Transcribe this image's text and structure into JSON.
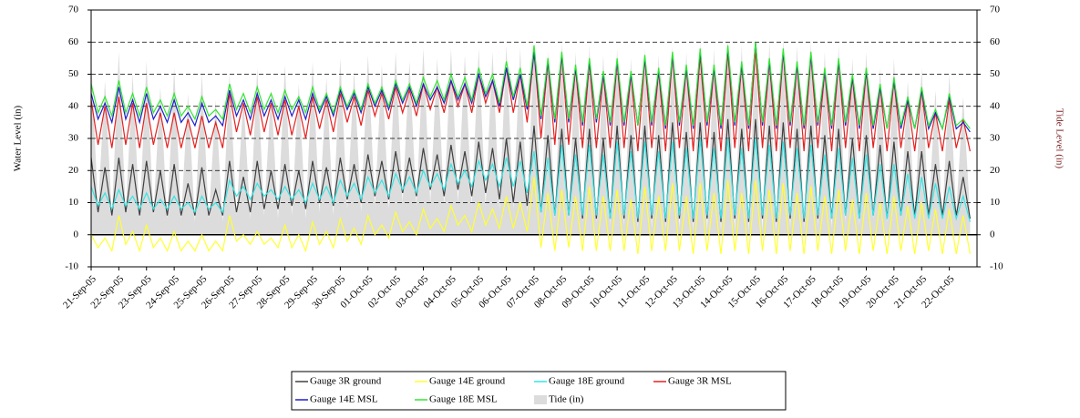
{
  "chart_data": {
    "type": "line",
    "y_label": "Water Level (in)",
    "y2_label": "Tide Level (in)",
    "ylim": [
      -10,
      70
    ],
    "yticks": [
      -10,
      0,
      10,
      20,
      30,
      40,
      50,
      60,
      70
    ],
    "y2lim": [
      -10,
      70
    ],
    "y2ticks": [
      -10,
      0,
      10,
      20,
      30,
      40,
      50,
      60,
      70
    ],
    "grid": true,
    "legend": "bottom",
    "categories": [
      "21-Sep-05",
      null,
      null,
      null,
      "22-Sep-05",
      null,
      null,
      null,
      "23-Sep-05",
      null,
      null,
      null,
      "24-Sep-05",
      null,
      null,
      null,
      "25-Sep-05",
      null,
      null,
      null,
      "26-Sep-05",
      null,
      null,
      null,
      "27-Sep-05",
      null,
      null,
      null,
      "28-Sep-05",
      null,
      null,
      null,
      "29-Sep-05",
      null,
      null,
      null,
      "30-Sep-05",
      null,
      null,
      null,
      "01-Oct-05",
      null,
      null,
      null,
      "02-Oct-05",
      null,
      null,
      null,
      "03-Oct-05",
      null,
      null,
      null,
      "04-Oct-05",
      null,
      null,
      null,
      "05-Oct-05",
      null,
      null,
      null,
      "06-Oct-05",
      null,
      null,
      null,
      "07-Oct-05",
      null,
      null,
      null,
      "08-Oct-05",
      null,
      null,
      null,
      "09-Oct-05",
      null,
      null,
      null,
      "10-Oct-05",
      null,
      null,
      null,
      "11-Oct-05",
      null,
      null,
      null,
      "12-Oct-05",
      null,
      null,
      null,
      "13-Oct-05",
      null,
      null,
      null,
      "14-Oct-05",
      null,
      null,
      null,
      "15-Oct-05",
      null,
      null,
      null,
      "16-Oct-05",
      null,
      null,
      null,
      "17-Oct-05",
      null,
      null,
      null,
      "18-Oct-05",
      null,
      null,
      null,
      "19-Oct-05",
      null,
      null,
      null,
      "20-Oct-05",
      null,
      null,
      null,
      "21-Oct-05",
      null,
      null,
      null,
      "22-Oct-05",
      null,
      null,
      null
    ],
    "series": [
      {
        "name": "Gauge 3R ground",
        "color": "#404040",
        "type": "line",
        "values": [
          24,
          7,
          21,
          6,
          24,
          7,
          22,
          6,
          23,
          7,
          20,
          6,
          22,
          6,
          16,
          6,
          21,
          6,
          14,
          6,
          23,
          7,
          18,
          7,
          23,
          8,
          20,
          8,
          22,
          9,
          20,
          8,
          23,
          10,
          21,
          9,
          24,
          11,
          22,
          10,
          25,
          12,
          23,
          11,
          26,
          13,
          24,
          12,
          27,
          14,
          25,
          12,
          28,
          14,
          26,
          12,
          29,
          13,
          27,
          11,
          30,
          10,
          29,
          9,
          34,
          7,
          31,
          6,
          33,
          6,
          30,
          5,
          33,
          5,
          30,
          5,
          34,
          5,
          31,
          4,
          34,
          5,
          31,
          4,
          35,
          5,
          32,
          4,
          35,
          5,
          32,
          4,
          36,
          5,
          33,
          4,
          36,
          5,
          34,
          4,
          35,
          5,
          33,
          4,
          34,
          5,
          31,
          5,
          33,
          6,
          30,
          5,
          31,
          6,
          28,
          5,
          29,
          6,
          26,
          6,
          26,
          6,
          22,
          6,
          23,
          6,
          18,
          5
        ]
      },
      {
        "name": "Gauge 14E ground",
        "color": "#ffff33",
        "type": "line",
        "values": [
          0,
          -4,
          -1,
          -5,
          6,
          -3,
          1,
          -5,
          3,
          -4,
          -1,
          -5,
          1,
          -5,
          -2,
          -5,
          0,
          -5,
          -2,
          -5,
          6,
          -2,
          0,
          -3,
          1,
          -3,
          -1,
          -4,
          3,
          -4,
          0,
          -5,
          4,
          -3,
          1,
          -4,
          5,
          -2,
          2,
          -3,
          6,
          0,
          3,
          -1,
          7,
          1,
          4,
          0,
          8,
          2,
          5,
          1,
          9,
          3,
          6,
          1,
          10,
          3,
          8,
          2,
          12,
          2,
          10,
          1,
          18,
          -4,
          13,
          -5,
          14,
          -4,
          12,
          -5,
          15,
          -5,
          12,
          -5,
          14,
          -5,
          11,
          -6,
          15,
          -5,
          12,
          -5,
          16,
          -5,
          12,
          -6,
          16,
          -5,
          13,
          -6,
          17,
          -5,
          13,
          -6,
          17,
          -5,
          14,
          -6,
          16,
          -5,
          13,
          -6,
          15,
          -5,
          12,
          -6,
          14,
          -5,
          11,
          -6,
          13,
          -5,
          10,
          -6,
          12,
          -5,
          9,
          -6,
          10,
          -5,
          8,
          -6,
          8,
          -6,
          6,
          -6
        ]
      },
      {
        "name": "Gauge 18E ground",
        "color": "#33e6e6",
        "type": "line",
        "values": [
          15,
          9,
          13,
          8,
          14,
          9,
          12,
          8,
          13,
          8,
          11,
          8,
          12,
          8,
          10,
          7,
          12,
          8,
          10,
          7,
          17,
          12,
          15,
          11,
          16,
          12,
          14,
          11,
          15,
          11,
          14,
          10,
          16,
          11,
          15,
          10,
          17,
          12,
          16,
          11,
          18,
          13,
          17,
          12,
          19,
          14,
          18,
          13,
          20,
          15,
          19,
          14,
          22,
          16,
          20,
          15,
          23,
          17,
          22,
          15,
          24,
          15,
          23,
          13,
          26,
          7,
          24,
          6,
          28,
          6,
          25,
          6,
          28,
          6,
          25,
          5,
          29,
          6,
          26,
          5,
          29,
          6,
          26,
          5,
          29,
          6,
          27,
          5,
          30,
          6,
          27,
          5,
          30,
          6,
          27,
          5,
          30,
          6,
          28,
          5,
          29,
          6,
          27,
          5,
          28,
          6,
          25,
          5,
          27,
          6,
          24,
          5,
          25,
          6,
          22,
          5,
          22,
          6,
          19,
          5,
          18,
          5,
          16,
          5,
          15,
          5,
          12,
          4
        ]
      },
      {
        "name": "Gauge 3R MSL",
        "color": "#e62020",
        "type": "line",
        "values": [
          42,
          28,
          40,
          27,
          43,
          28,
          41,
          27,
          41,
          28,
          38,
          27,
          38,
          27,
          36,
          27,
          37,
          27,
          35,
          27,
          44,
          32,
          41,
          31,
          43,
          32,
          41,
          31,
          42,
          31,
          40,
          30,
          43,
          33,
          42,
          32,
          44,
          35,
          43,
          34,
          45,
          37,
          44,
          36,
          46,
          38,
          45,
          37,
          47,
          39,
          46,
          38,
          48,
          40,
          47,
          38,
          50,
          41,
          48,
          38,
          52,
          38,
          50,
          35,
          57,
          30,
          54,
          28,
          56,
          28,
          52,
          27,
          54,
          27,
          50,
          27,
          54,
          27,
          50,
          26,
          55,
          27,
          51,
          26,
          56,
          27,
          52,
          26,
          56,
          27,
          52,
          26,
          57,
          27,
          53,
          26,
          58,
          27,
          54,
          26,
          57,
          27,
          53,
          26,
          56,
          27,
          51,
          26,
          54,
          27,
          49,
          26,
          51,
          27,
          46,
          26,
          48,
          27,
          42,
          26,
          45,
          27,
          38,
          26,
          42,
          27,
          36,
          26
        ]
      },
      {
        "name": "Gauge 14E MSL",
        "color": "#1f1fcc",
        "type": "line",
        "values": [
          44,
          36,
          41,
          35,
          46,
          36,
          42,
          35,
          44,
          36,
          40,
          35,
          42,
          35,
          38,
          34,
          41,
          35,
          37,
          34,
          45,
          37,
          42,
          36,
          44,
          37,
          42,
          36,
          43,
          37,
          42,
          36,
          44,
          38,
          43,
          37,
          45,
          39,
          44,
          38,
          46,
          40,
          45,
          39,
          47,
          41,
          46,
          40,
          47,
          42,
          46,
          41,
          48,
          42,
          47,
          41,
          50,
          43,
          48,
          40,
          52,
          42,
          50,
          39,
          57,
          36,
          54,
          35,
          56,
          35,
          52,
          34,
          54,
          35,
          50,
          34,
          54,
          34,
          50,
          34,
          55,
          34,
          51,
          33,
          56,
          34,
          52,
          33,
          57,
          34,
          52,
          33,
          58,
          34,
          53,
          33,
          60,
          34,
          54,
          33,
          57,
          34,
          53,
          33,
          56,
          34,
          51,
          33,
          54,
          34,
          49,
          33,
          51,
          33,
          46,
          33,
          48,
          33,
          42,
          33,
          45,
          33,
          38,
          33,
          43,
          33,
          35,
          32
        ]
      },
      {
        "name": "Gauge 18E MSL",
        "color": "#33e633",
        "type": "line",
        "values": [
          47,
          38,
          43,
          37,
          48,
          38,
          44,
          37,
          46,
          38,
          42,
          37,
          44,
          37,
          40,
          36,
          43,
          37,
          39,
          36,
          47,
          39,
          44,
          38,
          46,
          39,
          44,
          38,
          45,
          39,
          43,
          38,
          46,
          39,
          44,
          38,
          46,
          40,
          45,
          39,
          47,
          41,
          46,
          40,
          48,
          42,
          47,
          41,
          49,
          43,
          48,
          42,
          50,
          43,
          49,
          42,
          52,
          44,
          50,
          41,
          54,
          43,
          52,
          40,
          59,
          37,
          55,
          36,
          57,
          36,
          53,
          35,
          55,
          36,
          51,
          35,
          55,
          35,
          51,
          34,
          56,
          35,
          52,
          34,
          57,
          35,
          53,
          34,
          58,
          35,
          53,
          34,
          59,
          35,
          54,
          34,
          60,
          35,
          55,
          34,
          58,
          35,
          54,
          34,
          57,
          35,
          52,
          34,
          55,
          35,
          50,
          34,
          52,
          34,
          47,
          33,
          49,
          34,
          43,
          33,
          46,
          34,
          39,
          33,
          44,
          34,
          36,
          33
        ]
      },
      {
        "name": "Tide (in)",
        "color": "#dcdcdc",
        "type": "area",
        "axis": "y2",
        "values": [
          55,
          8,
          48,
          6,
          57,
          7,
          50,
          5,
          54,
          6,
          46,
          5,
          52,
          5,
          44,
          4,
          50,
          5,
          42,
          4,
          50,
          6,
          43,
          5,
          52,
          6,
          45,
          5,
          53,
          6,
          47,
          5,
          54,
          7,
          49,
          6,
          55,
          8,
          51,
          7,
          56,
          9,
          53,
          8,
          57,
          10,
          54,
          9,
          58,
          10,
          55,
          9,
          58,
          10,
          56,
          9,
          58,
          9,
          57,
          8,
          59,
          8,
          58,
          7,
          60,
          6,
          57,
          5,
          60,
          5,
          57,
          4,
          59,
          4,
          56,
          3,
          58,
          3,
          55,
          2,
          58,
          2,
          56,
          2,
          59,
          2,
          57,
          1,
          60,
          1,
          58,
          1,
          61,
          1,
          59,
          1,
          61,
          1,
          60,
          1,
          61,
          2,
          59,
          2,
          60,
          3,
          57,
          2,
          59,
          4,
          55,
          3,
          57,
          5,
          52,
          4,
          55,
          6,
          48,
          5,
          52,
          6,
          45,
          5,
          50,
          7,
          43,
          6
        ]
      }
    ]
  }
}
